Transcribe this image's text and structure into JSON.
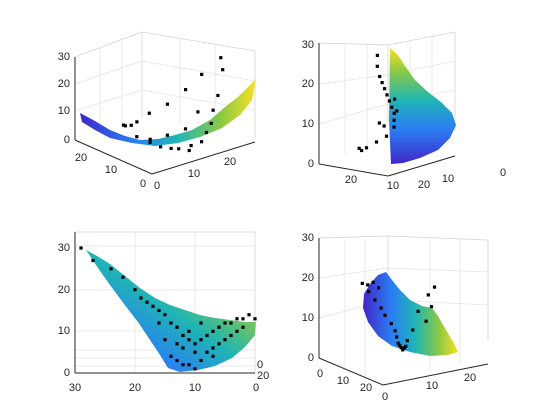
{
  "chart_data": [
    {
      "type": "scatter",
      "subplot": "top-left",
      "title": "",
      "xlabel": "",
      "ylabel": "",
      "zlabel": "",
      "x_ticks": [
        "0",
        "10",
        "20"
      ],
      "y_ticks": [
        "0",
        "10",
        "20"
      ],
      "z_ticks": [
        "0",
        "10",
        "20",
        "30"
      ],
      "xlim": [
        0,
        27
      ],
      "ylim": [
        0,
        27
      ],
      "zlim": [
        0,
        30
      ],
      "grid": true,
      "colormap": "parula",
      "surface": "interpolated surface of z over (x, y), min near (13, 13)",
      "point_marker": "black square",
      "points_xyz": [
        [
          2,
          8,
          9
        ],
        [
          4,
          6,
          7
        ],
        [
          6,
          5,
          5
        ],
        [
          8,
          4,
          4
        ],
        [
          10,
          4,
          3
        ],
        [
          12,
          3,
          2
        ],
        [
          14,
          5,
          2
        ],
        [
          16,
          4,
          3
        ],
        [
          18,
          5,
          5
        ],
        [
          20,
          6,
          7
        ],
        [
          22,
          8,
          10
        ],
        [
          24,
          9,
          14
        ],
        [
          26,
          10,
          22
        ],
        [
          27,
          12,
          25
        ],
        [
          3,
          14,
          10
        ],
        [
          5,
          16,
          8
        ],
        [
          8,
          18,
          6
        ],
        [
          11,
          20,
          5
        ],
        [
          15,
          21,
          6
        ],
        [
          19,
          20,
          8
        ],
        [
          23,
          19,
          12
        ],
        [
          25,
          16,
          18
        ],
        [
          7,
          10,
          5
        ],
        [
          13,
          12,
          3
        ],
        [
          17,
          11,
          4
        ],
        [
          21,
          12,
          8
        ]
      ]
    },
    {
      "type": "scatter",
      "subplot": "top-right",
      "title": "",
      "xlabel": "",
      "ylabel": "",
      "zlabel": "",
      "x_ticks": [
        "0",
        "10",
        "20"
      ],
      "y_ticks": [
        "10",
        "20"
      ],
      "z_ticks": [
        "0",
        "10",
        "20",
        "30"
      ],
      "xlim": [
        0,
        27
      ],
      "ylim": [
        0,
        27
      ],
      "zlim": [
        0,
        30
      ],
      "grid": true,
      "colormap": "parula",
      "point_marker": "black square",
      "points_xyz": [
        [
          5,
          9,
          28
        ],
        [
          6,
          10,
          25
        ],
        [
          8,
          11,
          22
        ],
        [
          10,
          12,
          20
        ],
        [
          12,
          13,
          18
        ],
        [
          14,
          14,
          16
        ],
        [
          16,
          15,
          14
        ],
        [
          18,
          16,
          12
        ],
        [
          20,
          17,
          10
        ],
        [
          21,
          18,
          8
        ],
        [
          22,
          19,
          6
        ],
        [
          20,
          20,
          4
        ],
        [
          17,
          21,
          3
        ],
        [
          14,
          22,
          2
        ],
        [
          11,
          21,
          2
        ],
        [
          9,
          20,
          3
        ],
        [
          19,
          15,
          11
        ],
        [
          15,
          12,
          15
        ],
        [
          13,
          16,
          9
        ],
        [
          18,
          19,
          7
        ]
      ]
    },
    {
      "type": "scatter",
      "subplot": "bottom-left",
      "title": "",
      "xlabel": "",
      "ylabel": "",
      "zlabel": "",
      "x_ticks": [
        "30",
        "20",
        "10",
        "0"
      ],
      "y_ticks": [
        "0",
        "20"
      ],
      "z_ticks": [
        "0",
        "10",
        "20",
        "30"
      ],
      "xlim": [
        0,
        30
      ],
      "ylim": [
        0,
        27
      ],
      "zlim": [
        0,
        30
      ],
      "grid": true,
      "colormap": "parula",
      "point_marker": "black square",
      "points_xz": [
        [
          29,
          30
        ],
        [
          27,
          27
        ],
        [
          24,
          25
        ],
        [
          22,
          23
        ],
        [
          20,
          20
        ],
        [
          19,
          18
        ],
        [
          18,
          17
        ],
        [
          17,
          16
        ],
        [
          16,
          15
        ],
        [
          15,
          14
        ],
        [
          14,
          12
        ],
        [
          13,
          11
        ],
        [
          12,
          9
        ],
        [
          11,
          8
        ],
        [
          10,
          7
        ],
        [
          9,
          8
        ],
        [
          8,
          9
        ],
        [
          7,
          10
        ],
        [
          6,
          11
        ],
        [
          5,
          12
        ],
        [
          4,
          12
        ],
        [
          3,
          13
        ],
        [
          2,
          13
        ],
        [
          1,
          14
        ],
        [
          0,
          13
        ],
        [
          14,
          4
        ],
        [
          13,
          3
        ],
        [
          12,
          2
        ],
        [
          11,
          2
        ],
        [
          10,
          1
        ],
        [
          9,
          3
        ],
        [
          8,
          5
        ],
        [
          7,
          4
        ],
        [
          12,
          6
        ],
        [
          10,
          5
        ],
        [
          6,
          7
        ],
        [
          5,
          8
        ],
        [
          15,
          8
        ],
        [
          3,
          10
        ],
        [
          2,
          11
        ],
        [
          11,
          10
        ],
        [
          9,
          12
        ],
        [
          7,
          6
        ],
        [
          13,
          7
        ],
        [
          4,
          9
        ],
        [
          16,
          12
        ]
      ]
    },
    {
      "type": "scatter",
      "subplot": "bottom-right",
      "title": "",
      "xlabel": "",
      "ylabel": "",
      "zlabel": "",
      "x_ticks": [
        "0",
        "10",
        "20"
      ],
      "y_ticks": [
        "0",
        "10",
        "20"
      ],
      "z_ticks": [
        "0",
        "10",
        "20",
        "30"
      ],
      "xlim": [
        0,
        27
      ],
      "ylim": [
        0,
        27
      ],
      "zlim": [
        0,
        30
      ],
      "grid": true,
      "colormap": "parula",
      "point_marker": "black square",
      "points_xyz": [
        [
          2,
          12,
          22
        ],
        [
          3,
          11,
          20
        ],
        [
          4,
          10,
          18
        ],
        [
          5,
          9,
          16
        ],
        [
          6,
          9,
          14
        ],
        [
          7,
          8,
          12
        ],
        [
          8,
          8,
          10
        ],
        [
          9,
          9,
          8
        ],
        [
          10,
          10,
          6
        ],
        [
          11,
          11,
          5
        ],
        [
          12,
          12,
          4
        ],
        [
          13,
          13,
          3
        ],
        [
          14,
          14,
          3
        ],
        [
          15,
          15,
          3
        ],
        [
          16,
          16,
          4
        ],
        [
          18,
          17,
          6
        ],
        [
          20,
          18,
          10
        ],
        [
          22,
          17,
          14
        ],
        [
          23,
          16,
          16
        ],
        [
          21,
          14,
          12
        ],
        [
          19,
          13,
          9
        ],
        [
          6,
          14,
          21
        ],
        [
          8,
          15,
          19
        ],
        [
          4,
          13,
          21
        ]
      ]
    }
  ]
}
